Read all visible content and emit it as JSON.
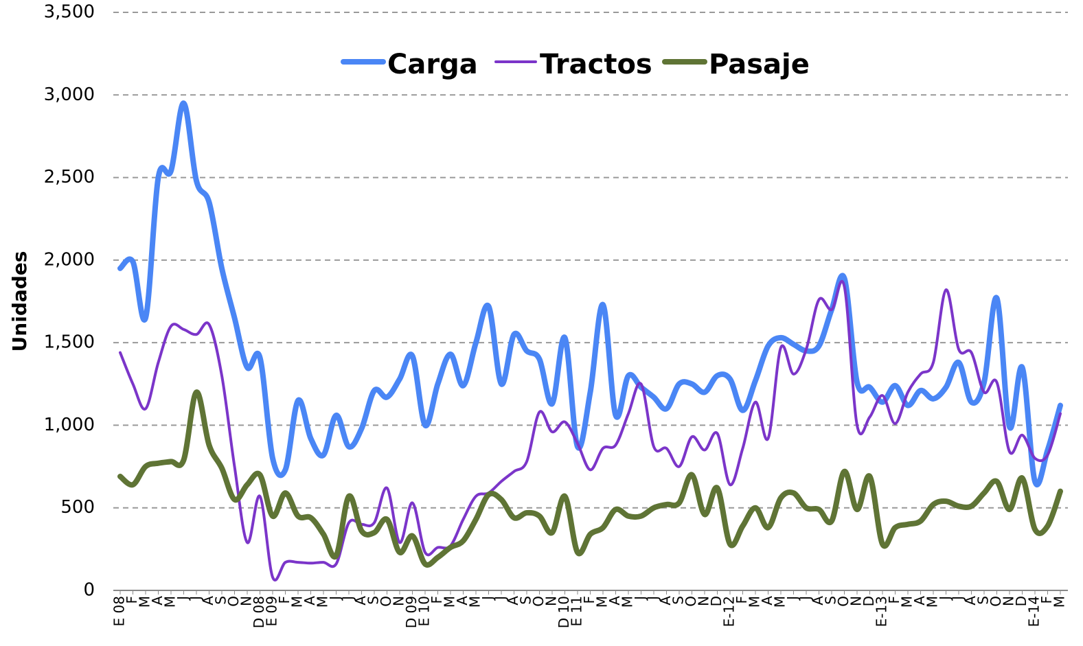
{
  "chart_data": {
    "type": "line",
    "y_label": "Unidades",
    "categories": [
      "E 08",
      "F",
      "M",
      "A",
      "M",
      "J",
      "J",
      "A",
      "S",
      "O",
      "N",
      "D 08",
      "E 09",
      "F",
      "M",
      "A",
      "M",
      "J",
      "J",
      "A",
      "S",
      "O",
      "N",
      "D 09",
      "E 10",
      "F",
      "M",
      "A",
      "M",
      "J",
      "J",
      "A",
      "S",
      "O",
      "N",
      "D 10",
      "E 11",
      "F",
      "M",
      "A",
      "M",
      "J",
      "J",
      "A",
      "S",
      "O",
      "N",
      "D",
      "E-12",
      "F",
      "M",
      "A",
      "M",
      "J",
      "J",
      "A",
      "S",
      "O",
      "N",
      "D",
      "E-13",
      "F",
      "M",
      "A",
      "M",
      "J",
      "J",
      "A",
      "S",
      "O",
      "N",
      "D",
      "E-14",
      "F",
      "M"
    ],
    "series": [
      {
        "name": "Carga",
        "color": "#4a86f5",
        "width": 8,
        "values": [
          1950,
          1990,
          1650,
          2500,
          2540,
          2950,
          2480,
          2350,
          1950,
          1650,
          1350,
          1410,
          800,
          730,
          1150,
          920,
          820,
          1060,
          870,
          980,
          1210,
          1170,
          1280,
          1420,
          1000,
          1250,
          1430,
          1240,
          1500,
          1720,
          1250,
          1550,
          1450,
          1400,
          1130,
          1530,
          870,
          1200,
          1730,
          1060,
          1300,
          1230,
          1170,
          1100,
          1250,
          1250,
          1200,
          1300,
          1280,
          1090,
          1270,
          1480,
          1530,
          1490,
          1450,
          1480,
          1700,
          1890,
          1260,
          1230,
          1140,
          1240,
          1120,
          1210,
          1160,
          1230,
          1380,
          1140,
          1260,
          1770,
          990,
          1350,
          660,
          850,
          1120
        ]
      },
      {
        "name": "Tractos",
        "color": "#7b35c9",
        "width": 4,
        "values": [
          1440,
          1250,
          1100,
          1380,
          1600,
          1580,
          1550,
          1610,
          1300,
          750,
          290,
          570,
          80,
          170,
          170,
          165,
          170,
          160,
          410,
          400,
          410,
          620,
          290,
          530,
          230,
          260,
          270,
          430,
          570,
          590,
          660,
          720,
          780,
          1080,
          960,
          1020,
          890,
          730,
          860,
          880,
          1070,
          1250,
          870,
          860,
          750,
          930,
          850,
          950,
          640,
          860,
          1140,
          920,
          1470,
          1310,
          1460,
          1760,
          1700,
          1840,
          1000,
          1050,
          1180,
          1010,
          1200,
          1310,
          1380,
          1820,
          1460,
          1440,
          1200,
          1260,
          840,
          940,
          800,
          820,
          1070
        ]
      },
      {
        "name": "Pasaje",
        "color": "#5f7435",
        "width": 8,
        "values": [
          690,
          640,
          750,
          770,
          780,
          790,
          1200,
          880,
          740,
          550,
          640,
          700,
          450,
          590,
          450,
          440,
          340,
          210,
          570,
          360,
          350,
          430,
          230,
          330,
          160,
          200,
          260,
          300,
          430,
          580,
          550,
          440,
          470,
          450,
          350,
          570,
          230,
          340,
          380,
          490,
          450,
          450,
          500,
          520,
          530,
          700,
          460,
          620,
          280,
          390,
          500,
          380,
          560,
          590,
          500,
          490,
          420,
          720,
          490,
          690,
          280,
          380,
          400,
          420,
          520,
          540,
          510,
          510,
          590,
          660,
          490,
          680,
          370,
          390,
          600
        ]
      }
    ],
    "ylim": [
      0,
      3500
    ],
    "yticks": [
      0,
      500,
      {
        "value": 1000,
        "label": "1,000"
      },
      {
        "value": 1500,
        "label": "1,500"
      },
      {
        "value": 2000,
        "label": "2,000"
      },
      {
        "value": 2500,
        "label": "2,500"
      },
      {
        "value": 3000,
        "label": "3,000"
      },
      {
        "value": 3500,
        "label": "3,500"
      }
    ],
    "grid": true,
    "legend": "top"
  }
}
